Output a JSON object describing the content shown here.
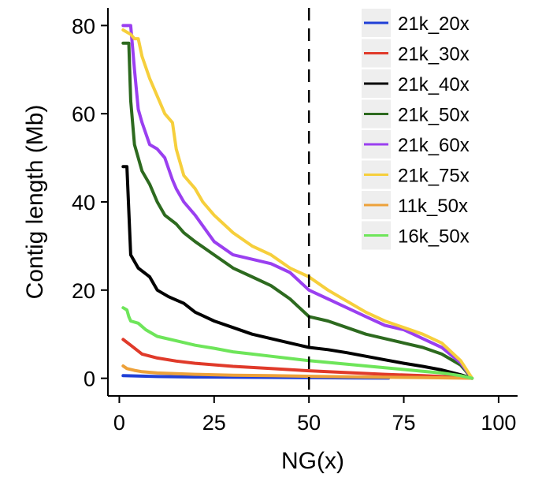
{
  "chart_data": {
    "type": "line",
    "title": "",
    "xlabel": "NG(x)",
    "ylabel": "Contig length (Mb)",
    "xlim": [
      -3,
      105
    ],
    "ylim": [
      -4,
      84
    ],
    "xticks": [
      0,
      25,
      50,
      75,
      100
    ],
    "yticks": [
      0,
      20,
      40,
      60,
      80
    ],
    "vline": {
      "x": 50,
      "style": "dashed"
    },
    "grid": false,
    "legend_position": "top-right",
    "series": [
      {
        "name": "21k_20x",
        "color": "#1f3fd6",
        "x": [
          1,
          10,
          20,
          30,
          40,
          50,
          60,
          71
        ],
        "y": [
          0.6,
          0.4,
          0.3,
          0.25,
          0.2,
          0.15,
          0.1,
          0.05
        ]
      },
      {
        "name": "21k_30x",
        "color": "#e03a2a",
        "x": [
          1,
          3,
          6,
          10,
          15,
          20,
          30,
          40,
          50,
          60,
          70,
          80,
          90,
          93
        ],
        "y": [
          8.8,
          7.5,
          5.5,
          4.6,
          3.9,
          3.4,
          2.7,
          2.2,
          1.7,
          1.3,
          0.9,
          0.6,
          0.2,
          0
        ]
      },
      {
        "name": "21k_40x",
        "color": "#000000",
        "x": [
          1,
          2,
          2.5,
          3,
          5,
          8,
          10,
          13,
          17,
          20,
          25,
          30,
          35,
          40,
          45,
          50,
          55,
          60,
          65,
          70,
          75,
          80,
          85,
          90,
          93
        ],
        "y": [
          48,
          48,
          38,
          28,
          25,
          23,
          20,
          18.5,
          17,
          15,
          13,
          11.5,
          10,
          9,
          8,
          7,
          6.5,
          5.8,
          5,
          4.2,
          3.4,
          2.7,
          1.9,
          0.8,
          0
        ]
      },
      {
        "name": "21k_50x",
        "color": "#2d6a1f",
        "x": [
          1,
          2.5,
          3,
          4,
          5,
          6,
          8,
          10,
          12,
          15,
          17,
          20,
          25,
          30,
          35,
          40,
          45,
          50,
          55,
          60,
          65,
          70,
          75,
          80,
          85,
          90,
          93
        ],
        "y": [
          76,
          76,
          63,
          53,
          50,
          47,
          44,
          40,
          37,
          35,
          33,
          31,
          28,
          25,
          23,
          21,
          18,
          14,
          13,
          11.5,
          10,
          9,
          8,
          7,
          5.5,
          3,
          0
        ]
      },
      {
        "name": "21k_60x",
        "color": "#9a3ff0",
        "x": [
          1,
          3,
          4,
          5,
          6,
          8,
          10,
          12,
          14,
          15,
          17,
          20,
          25,
          30,
          35,
          40,
          45,
          50,
          55,
          60,
          65,
          70,
          75,
          80,
          85,
          90,
          93
        ],
        "y": [
          80,
          80,
          70,
          61,
          58,
          53,
          52,
          50,
          45,
          43,
          40,
          37,
          31,
          28,
          27,
          26,
          24,
          20,
          18,
          16,
          14,
          12,
          11,
          9,
          7,
          3.5,
          0
        ]
      },
      {
        "name": "21k_75x",
        "color": "#f6cf3c",
        "x": [
          1,
          2,
          3,
          4,
          5,
          6,
          8,
          10,
          12,
          14,
          15,
          17,
          20,
          22,
          25,
          30,
          35,
          40,
          45,
          50,
          55,
          60,
          65,
          70,
          75,
          80,
          85,
          90,
          93
        ],
        "y": [
          79,
          78.5,
          78,
          77,
          77,
          73,
          68,
          64,
          60,
          58,
          52,
          46,
          43,
          40,
          37,
          33,
          30,
          28,
          25,
          23,
          20,
          17.5,
          15,
          13,
          11.5,
          10,
          8,
          4,
          0
        ]
      },
      {
        "name": "11k_50x",
        "color": "#eda13a",
        "x": [
          1,
          2,
          4,
          6,
          10,
          20,
          30,
          40,
          50,
          60,
          70,
          80,
          90,
          93
        ],
        "y": [
          2.8,
          2.2,
          1.8,
          1.5,
          1.2,
          0.9,
          0.7,
          0.6,
          0.45,
          0.35,
          0.25,
          0.15,
          0.05,
          0
        ]
      },
      {
        "name": "16k_50x",
        "color": "#6ee55a",
        "x": [
          1,
          2,
          2.5,
          3,
          5,
          7,
          10,
          15,
          20,
          25,
          30,
          35,
          40,
          45,
          50,
          55,
          60,
          65,
          70,
          75,
          80,
          85,
          90,
          93
        ],
        "y": [
          16,
          15.5,
          14,
          13,
          12.5,
          11,
          9.5,
          8.5,
          7.5,
          6.8,
          6,
          5.5,
          5,
          4.5,
          4,
          3.6,
          3.2,
          2.8,
          2.4,
          2,
          1.6,
          1.2,
          0.6,
          0
        ]
      }
    ]
  }
}
